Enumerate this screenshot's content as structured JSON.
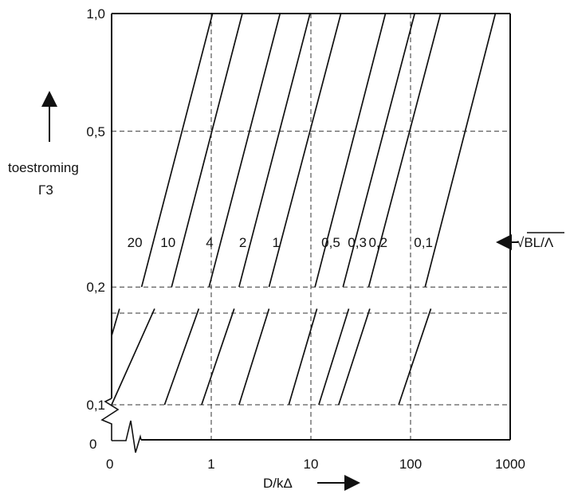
{
  "chart_data": {
    "type": "line",
    "x_scale": "log",
    "y_scale": "log",
    "xlabel": "D/kΔ",
    "ylabel": "toestroming",
    "ylabel_symbol": "Γ3",
    "parameter_label": "√BL/Λ",
    "xlim": [
      0.1,
      1000
    ],
    "ylim": [
      0.1,
      1.0
    ],
    "x_ticks": [
      {
        "value": 1,
        "label": "1"
      },
      {
        "value": 10,
        "label": "10"
      },
      {
        "value": 100,
        "label": "100"
      },
      {
        "value": 1000,
        "label": "1000"
      }
    ],
    "x_origin_label": "0",
    "y_ticks": [
      {
        "value": 0.1,
        "label": "0,1"
      },
      {
        "value": 0.2,
        "label": "0,2"
      },
      {
        "value": 0.5,
        "label": "0,5"
      },
      {
        "value": 1.0,
        "label": "1,0"
      }
    ],
    "y_origin_label": "0",
    "grid": true,
    "series": [
      {
        "name": "20",
        "lower": [
          [
            0.1,
            0.15
          ],
          [
            0.12,
            0.176
          ]
        ],
        "upper": [
          [
            0.2,
            0.2
          ],
          [
            1.03,
            1.0
          ]
        ]
      },
      {
        "name": "10",
        "lower": [
          [
            0.1,
            0.1
          ],
          [
            0.27,
            0.176
          ]
        ],
        "upper": [
          [
            0.4,
            0.2
          ],
          [
            2.05,
            1.0
          ]
        ]
      },
      {
        "name": "4",
        "lower": [
          [
            0.34,
            0.1
          ],
          [
            0.75,
            0.176
          ]
        ],
        "upper": [
          [
            0.95,
            0.2
          ],
          [
            4.9,
            1.0
          ]
        ]
      },
      {
        "name": "2",
        "lower": [
          [
            0.8,
            0.1
          ],
          [
            1.7,
            0.176
          ]
        ],
        "upper": [
          [
            1.9,
            0.2
          ],
          [
            9.8,
            1.0
          ]
        ]
      },
      {
        "name": "1",
        "lower": [
          [
            1.9,
            0.1
          ],
          [
            3.8,
            0.176
          ]
        ],
        "upper": [
          [
            3.8,
            0.2
          ],
          [
            20,
            1.0
          ]
        ]
      },
      {
        "name": "0,5",
        "lower": [
          [
            6.0,
            0.1
          ],
          [
            11.5,
            0.176
          ]
        ],
        "upper": [
          [
            11,
            0.2
          ],
          [
            56,
            1.0
          ]
        ]
      },
      {
        "name": "0,3",
        "lower": [
          [
            12,
            0.1
          ],
          [
            24,
            0.176
          ]
        ],
        "upper": [
          [
            21,
            0.2
          ],
          [
            110,
            1.0
          ]
        ]
      },
      {
        "name": "0,2",
        "lower": [
          [
            19,
            0.1
          ],
          [
            39,
            0.176
          ]
        ],
        "upper": [
          [
            38,
            0.2
          ],
          [
            200,
            1.0
          ]
        ]
      },
      {
        "name": "0,1",
        "lower": [
          [
            76,
            0.1
          ],
          [
            160,
            0.176
          ]
        ],
        "upper": [
          [
            140,
            0.2
          ],
          [
            710,
            1.0
          ]
        ]
      }
    ]
  }
}
